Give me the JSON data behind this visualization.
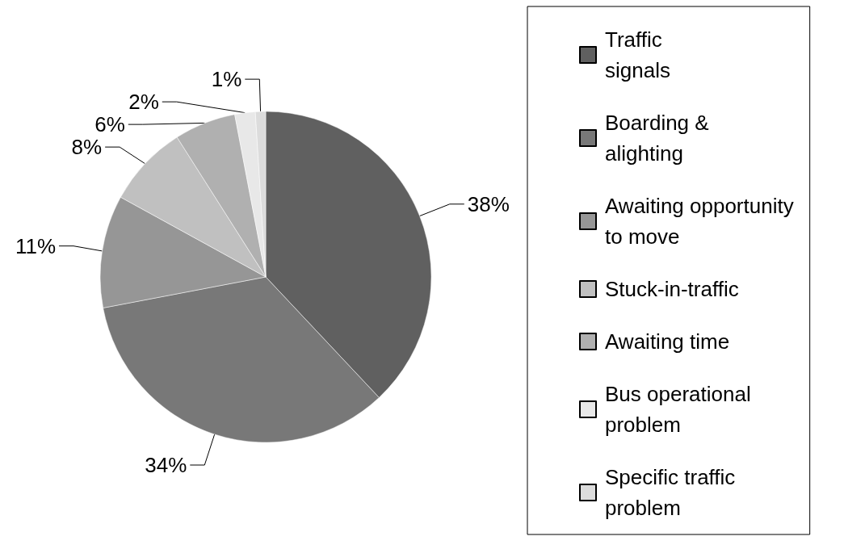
{
  "chart_data": {
    "type": "pie",
    "categories": [
      "Traffic\nsignals",
      "Boarding &\nalighting",
      "Awaiting opportunity\nto move",
      "Stuck-in-traffic",
      "Awaiting time",
      "Bus operational\nproblem",
      "Specific traffic\nproblem"
    ],
    "values": [
      38,
      34,
      11,
      8,
      6,
      2,
      1
    ],
    "colors": [
      "#606060",
      "#787878",
      "#969696",
      "#c0c0c0",
      "#b0b0b0",
      "#e8e8e8",
      "#dcdcdc"
    ],
    "value_labels": [
      "38%",
      "34%",
      "11%",
      "8%",
      "6%",
      "2%",
      "1%"
    ],
    "legend": "right"
  }
}
